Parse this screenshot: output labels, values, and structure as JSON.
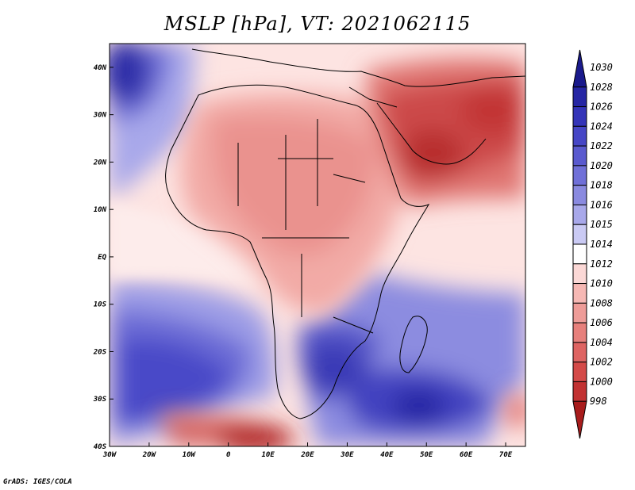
{
  "title": "MSLP [hPa], VT: 2021062115",
  "credit": "GrADS: IGES/COLA",
  "colors": {
    "background": "#ffffff",
    "land_lines": "#000000",
    "deep_low": "#b01818",
    "deep_high": "#1e1e9a"
  },
  "map": {
    "lon_range": [
      -30,
      75
    ],
    "lat_range": [
      -40,
      45
    ],
    "lon_ticks": [
      {
        "value": -30,
        "label": "30W"
      },
      {
        "value": -20,
        "label": "20W"
      },
      {
        "value": -10,
        "label": "10W"
      },
      {
        "value": 0,
        "label": "0"
      },
      {
        "value": 10,
        "label": "10E"
      },
      {
        "value": 20,
        "label": "20E"
      },
      {
        "value": 30,
        "label": "30E"
      },
      {
        "value": 40,
        "label": "40E"
      },
      {
        "value": 50,
        "label": "50E"
      },
      {
        "value": 60,
        "label": "60E"
      },
      {
        "value": 70,
        "label": "70E"
      }
    ],
    "lat_ticks": [
      {
        "value": 40,
        "label": "40N"
      },
      {
        "value": 30,
        "label": "30N"
      },
      {
        "value": 20,
        "label": "20N"
      },
      {
        "value": 10,
        "label": "10N"
      },
      {
        "value": 0,
        "label": "EQ"
      },
      {
        "value": -10,
        "label": "10S"
      },
      {
        "value": -20,
        "label": "20S"
      },
      {
        "value": -30,
        "label": "30S"
      },
      {
        "value": -40,
        "label": "40S"
      }
    ]
  },
  "colorbar": {
    "unit": "hPa",
    "levels": [
      {
        "label": "1030",
        "color": "#1a1a8c"
      },
      {
        "label": "1028",
        "color": "#2626a4"
      },
      {
        "label": "1026",
        "color": "#3434b8"
      },
      {
        "label": "1024",
        "color": "#4646c6"
      },
      {
        "label": "1022",
        "color": "#5a5acf"
      },
      {
        "label": "1020",
        "color": "#7070d8"
      },
      {
        "label": "1018",
        "color": "#8a8ae0"
      },
      {
        "label": "1016",
        "color": "#a8a8ea"
      },
      {
        "label": "1015",
        "color": "#cacaf4"
      },
      {
        "label": "1014",
        "color": "#ffffff"
      },
      {
        "label": "1012",
        "color": "#fbd8d6"
      },
      {
        "label": "1010",
        "color": "#f6b8b4"
      },
      {
        "label": "1008",
        "color": "#ee9c98"
      },
      {
        "label": "1006",
        "color": "#e7807c"
      },
      {
        "label": "1004",
        "color": "#de6462"
      },
      {
        "label": "1002",
        "color": "#d44a48"
      },
      {
        "label": "1000",
        "color": "#c23232"
      },
      {
        "label": "998",
        "color": "#a81c1c"
      }
    ]
  }
}
